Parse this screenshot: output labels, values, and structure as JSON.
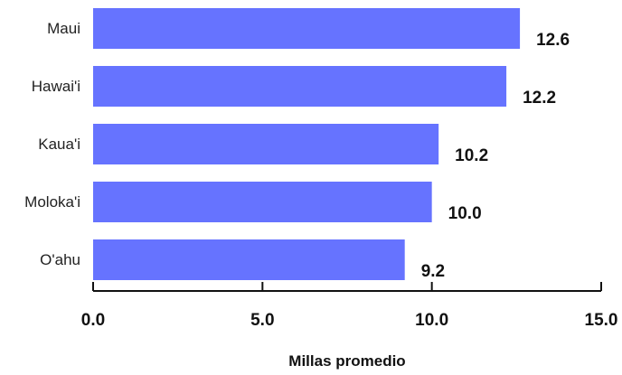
{
  "chart_data": {
    "type": "bar",
    "orientation": "horizontal",
    "categories": [
      "Maui",
      "Hawai'i",
      "Kaua'i",
      "Moloka'i",
      "O'ahu"
    ],
    "values": [
      12.6,
      12.2,
      10.2,
      10.0,
      9.2
    ],
    "value_labels": [
      "12.6",
      "12.2",
      "10.2",
      "10.0",
      "9.2"
    ],
    "xlabel": "Millas promedio",
    "xlim": [
      0,
      15
    ],
    "xticks": [
      0,
      5,
      10,
      15
    ],
    "xtick_labels": [
      "0.0",
      "5.0",
      "10.0",
      "15.0"
    ],
    "grid": false,
    "colors": {
      "bar": "#6673FF",
      "axis": "#111111"
    }
  }
}
